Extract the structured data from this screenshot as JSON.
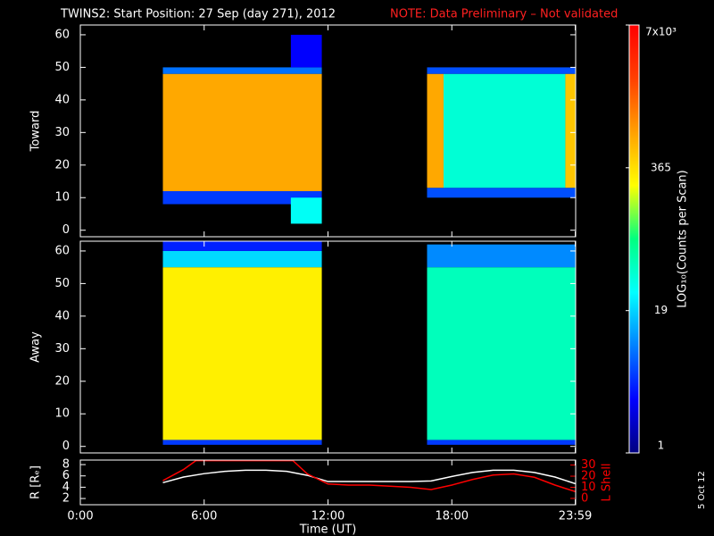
{
  "title": "TWINS2: Start Position: 27 Sep (day 271), 2012",
  "note": "NOTE: Data Preliminary – Not validated",
  "side_note": "5 Oct 12",
  "colorbar": {
    "label": "LOG₁₀(Counts per Scan)",
    "log": true,
    "clim": [
      1,
      7000
    ],
    "ticks": [
      {
        "value": 7000,
        "label": "7x10³"
      },
      365,
      19,
      1
    ],
    "colormap": [
      "#000080",
      "#0000ff",
      "#0080ff",
      "#00ffff",
      "#00ff80",
      "#ffff00",
      "#ffa000",
      "#ff4000",
      "#ff0000"
    ]
  },
  "chart_data": [
    {
      "type": "heatmap",
      "ylabel": "Toward",
      "xlim": [
        0,
        24
      ],
      "ylim": [
        -2,
        63
      ],
      "yticks": [
        0,
        10,
        20,
        30,
        40,
        50,
        60
      ],
      "blocks": [
        {
          "x": [
            4.0,
            11.7
          ],
          "y": [
            8,
            12
          ],
          "value": 5
        },
        {
          "x": [
            4.0,
            11.7
          ],
          "y": [
            12,
            48
          ],
          "value": 700
        },
        {
          "x": [
            4.0,
            11.7
          ],
          "y": [
            48,
            50
          ],
          "value": 8
        },
        {
          "x": [
            10.2,
            11.7
          ],
          "y": [
            50,
            60
          ],
          "value": 3
        },
        {
          "x": [
            10.2,
            11.7
          ],
          "y": [
            2,
            10
          ],
          "value": 30
        },
        {
          "x": [
            16.8,
            17.6
          ],
          "y": [
            13,
            48
          ],
          "value": 700
        },
        {
          "x": [
            17.6,
            23.5
          ],
          "y": [
            13,
            48
          ],
          "value": 40
        },
        {
          "x": [
            23.5,
            24
          ],
          "y": [
            13,
            48
          ],
          "value": 500
        },
        {
          "x": [
            16.8,
            24
          ],
          "y": [
            10,
            13
          ],
          "value": 6
        },
        {
          "x": [
            16.8,
            24
          ],
          "y": [
            48,
            50
          ],
          "value": 6
        }
      ]
    },
    {
      "type": "heatmap",
      "ylabel": "Away",
      "xlim": [
        0,
        24
      ],
      "ylim": [
        -2,
        63
      ],
      "yticks": [
        0,
        10,
        20,
        30,
        40,
        50,
        60
      ],
      "blocks": [
        {
          "x": [
            4.0,
            11.7
          ],
          "y": [
            0.5,
            2
          ],
          "value": 5
        },
        {
          "x": [
            4.0,
            11.7
          ],
          "y": [
            2,
            55
          ],
          "value": 300
        },
        {
          "x": [
            4.0,
            11.7
          ],
          "y": [
            55,
            60
          ],
          "value": 20
        },
        {
          "x": [
            4.0,
            11.7
          ],
          "y": [
            60,
            64
          ],
          "value": 4
        },
        {
          "x": [
            16.8,
            24
          ],
          "y": [
            0.5,
            2
          ],
          "value": 5
        },
        {
          "x": [
            16.8,
            24
          ],
          "y": [
            2,
            55
          ],
          "value": 50
        },
        {
          "x": [
            16.8,
            24
          ],
          "y": [
            55,
            62
          ],
          "value": 10
        }
      ]
    },
    {
      "type": "line",
      "ylabel": "R [Rₑ]",
      "y2label": "L Shell",
      "xlabel": "Time (UT)",
      "xlim": [
        0,
        24
      ],
      "ylim": [
        0.9,
        8.8
      ],
      "y2lim": [
        -5.7,
        34.5
      ],
      "xticks": [
        {
          "value": 0,
          "label": "0:00"
        },
        {
          "value": 6,
          "label": "6:00"
        },
        {
          "value": 12,
          "label": "12:00"
        },
        {
          "value": 18,
          "label": "18:00"
        },
        {
          "value": 23.98,
          "label": "23:59"
        }
      ],
      "yticks": [
        2,
        4,
        6,
        8
      ],
      "y2ticks": [
        0,
        10,
        20,
        30
      ],
      "series": [
        {
          "name": "R",
          "color": "#ffffff",
          "x": [
            4,
            5,
            6,
            7,
            8,
            9,
            10,
            11,
            12,
            13,
            14,
            15,
            16,
            17,
            18,
            19,
            20,
            21,
            22,
            23,
            24
          ],
          "values": [
            4.8,
            5.8,
            6.4,
            6.8,
            7.0,
            7.0,
            6.8,
            6.1,
            5.0,
            5.0,
            5.0,
            5.0,
            5.0,
            5.1,
            5.9,
            6.6,
            7.0,
            7.0,
            6.6,
            5.8,
            4.6
          ]
        },
        {
          "name": "L Shell",
          "color": "#ff0000",
          "axis": "y2",
          "x": [
            4,
            5,
            5.6,
            10.3,
            11,
            12,
            13,
            14,
            15,
            16,
            17,
            18,
            19,
            20,
            21,
            22,
            23,
            24
          ],
          "values": [
            16,
            26,
            34,
            34,
            22,
            13,
            12,
            12,
            11,
            10,
            8,
            12,
            17,
            21,
            22,
            19,
            12,
            6
          ]
        }
      ]
    }
  ]
}
